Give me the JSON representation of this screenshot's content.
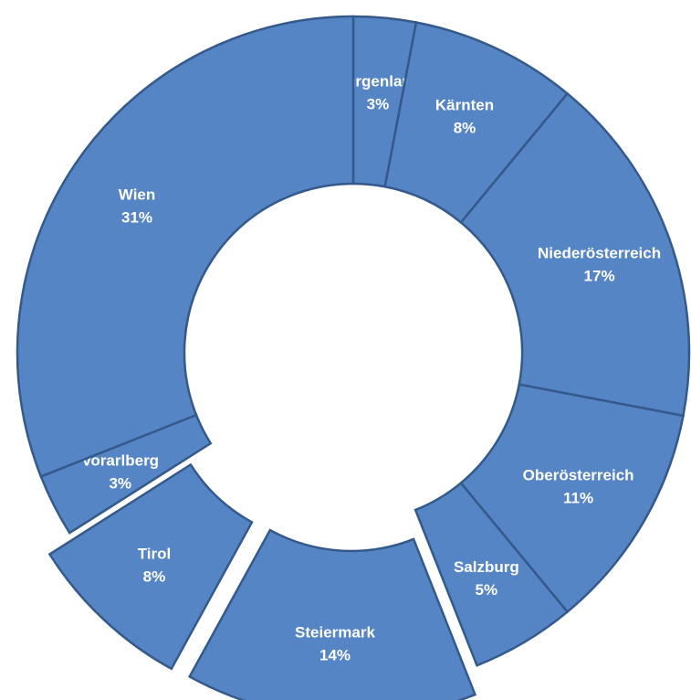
{
  "chart_data": {
    "type": "donut",
    "categories": [
      "Burgenland",
      "Kärnten",
      "Niederösterreich",
      "Oberösterreich",
      "Salzburg",
      "Steiermark",
      "Tirol",
      "Vorarlberg",
      "Wien"
    ],
    "values": [
      3,
      8,
      17,
      11,
      5,
      14,
      8,
      3,
      31
    ],
    "value_labels": [
      "3%",
      "8%",
      "17%",
      "11%",
      "5%",
      "14%",
      "8%",
      "3%",
      "31%"
    ],
    "exploded": [
      false,
      false,
      false,
      false,
      false,
      true,
      true,
      false,
      false
    ],
    "color": "#5585c5",
    "edge_color": "#34598a"
  }
}
